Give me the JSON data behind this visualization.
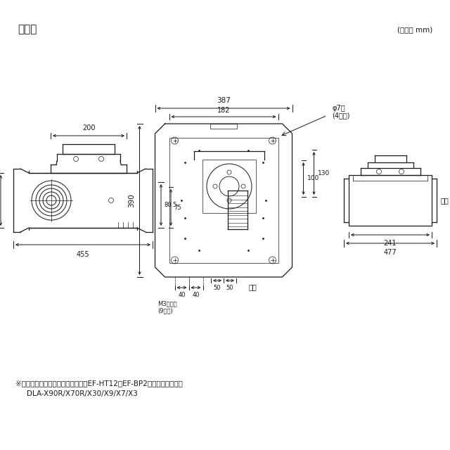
{
  "title": "寸法図",
  "unit_label": "(単位： mm)",
  "background_color": "#ffffff",
  "line_color": "#1a1a1a",
  "note_line1": "※この図面は、下記プロジェクターEF-HT12、EF-BP2の組合せ図です。",
  "note_line2": "DLA-X90R/X70R/X30/X9/X7/X3",
  "phi_note1": "φ7穴",
  "phi_note2": "(4か所)",
  "m3_note1": "M3ねじ穴",
  "m3_note2": "(9か所)",
  "front_label": "正面"
}
